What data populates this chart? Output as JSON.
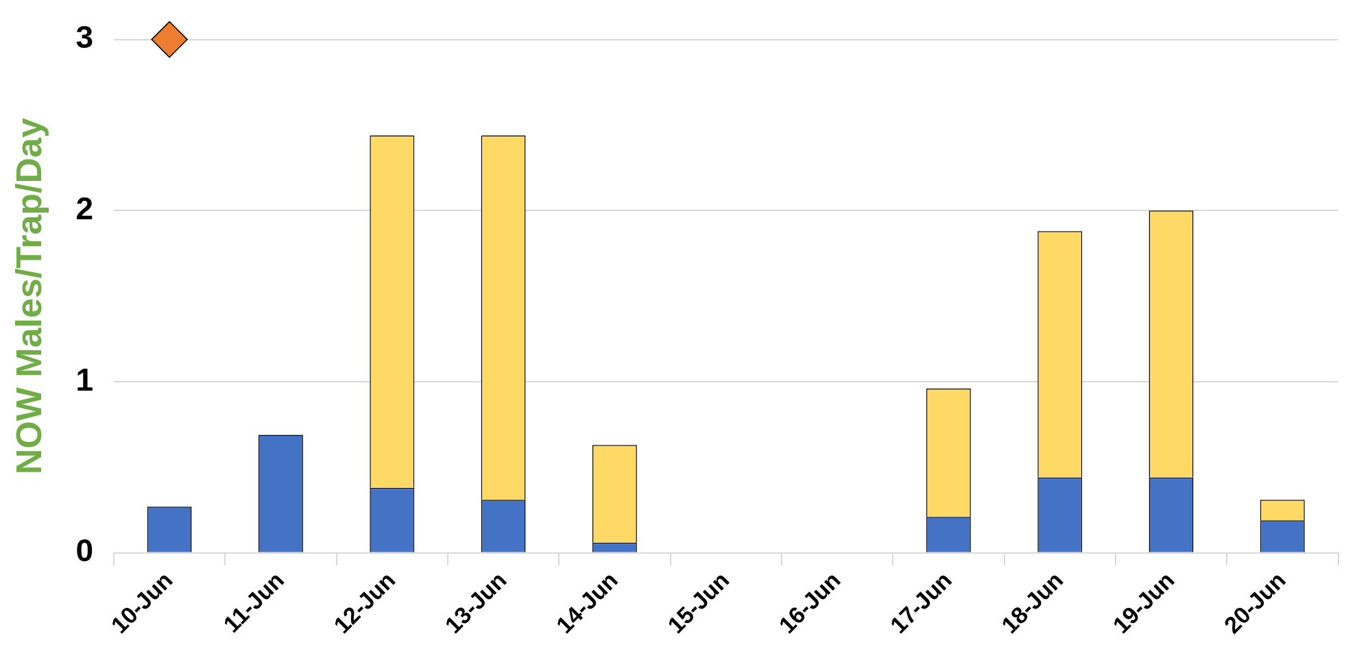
{
  "chart_data": {
    "type": "bar",
    "ylabel": "NOW Males/Trap/Day",
    "categories": [
      "10-Jun",
      "11-Jun",
      "12-Jun",
      "13-Jun",
      "14-Jun",
      "15-Jun",
      "16-Jun",
      "17-Jun",
      "18-Jun",
      "19-Jun",
      "20-Jun"
    ],
    "series": [
      {
        "color": "#4472c4",
        "values": [
          0.27,
          0.69,
          0.38,
          0.31,
          0.06,
          null,
          null,
          0.21,
          0.44,
          0.44,
          0.19
        ]
      },
      {
        "color": "#ffd966",
        "values": [
          null,
          null,
          2.06,
          2.13,
          0.57,
          null,
          null,
          0.75,
          1.44,
          1.56,
          0.12
        ]
      },
      {
        "type": "scatter",
        "color": "#ed7d31",
        "marker": "diamond",
        "x": [
          "10-Jun"
        ],
        "values": [
          3
        ]
      }
    ],
    "stacked": true,
    "ylim": [
      0,
      3
    ],
    "yticks": [
      0,
      1,
      2,
      3
    ],
    "grid": "y",
    "legend": false
  }
}
